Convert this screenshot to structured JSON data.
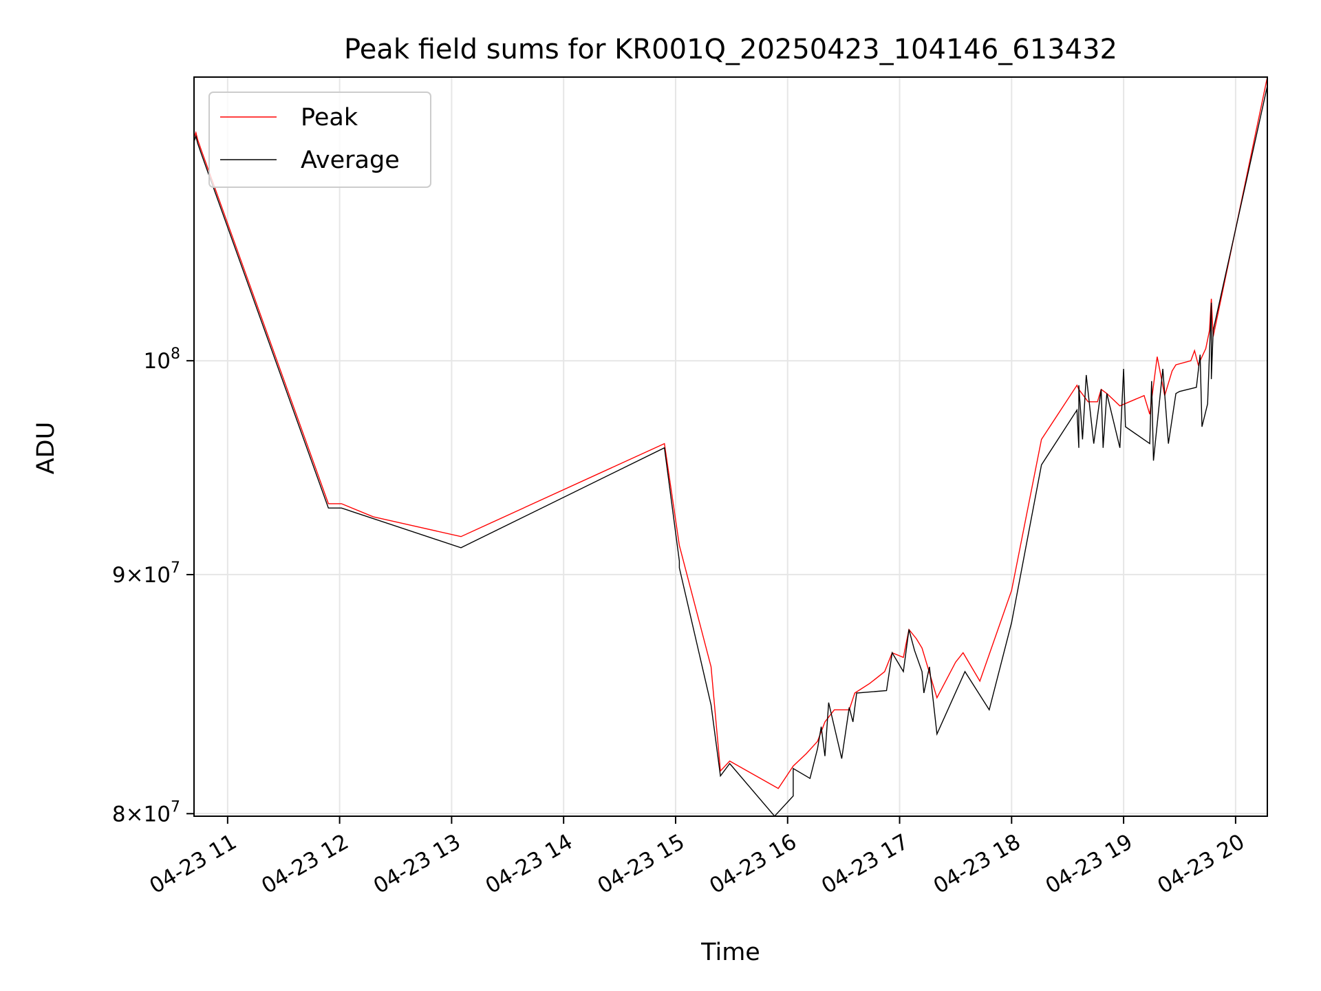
{
  "chart_data": {
    "type": "line",
    "title": "Peak field sums for KR001Q_20250423_104146_613432",
    "xlabel": "Time",
    "ylabel": "ADU",
    "yscale": "log",
    "grid": true,
    "legend_placement": "top-left",
    "xlim": [
      "2025-04-23 10:42",
      "2025-04-23 20:17"
    ],
    "ylim": [
      79900000,
      115000000
    ],
    "x_ticks": [
      "04-23 11",
      "04-23 12",
      "04-23 13",
      "04-23 14",
      "04-23 15",
      "04-23 16",
      "04-23 17",
      "04-23 18",
      "04-23 19",
      "04-23 20"
    ],
    "y_ticks": [
      {
        "value": 80000000,
        "mantissa": "8",
        "base": "10",
        "exponent": "7"
      },
      {
        "value": 90000000,
        "mantissa": "9",
        "base": "10",
        "exponent": "7"
      },
      {
        "value": 100000000,
        "mantissa": "",
        "base": "10",
        "exponent": "8"
      }
    ],
    "series": [
      {
        "name": "Peak",
        "color": "#ff0000",
        "points": [
          [
            "2025-04-23 10:42",
            111600000
          ],
          [
            "2025-04-23 10:43",
            111900000
          ],
          [
            "2025-04-23 10:44",
            111500000
          ],
          [
            "2025-04-23 10:46",
            110900000
          ],
          [
            "2025-04-23 11:54",
            93200000
          ],
          [
            "2025-04-23 12:01",
            93200000
          ],
          [
            "2025-04-23 12:18",
            92600000
          ],
          [
            "2025-04-23 13:05",
            91700000
          ],
          [
            "2025-04-23 14:54",
            96000000
          ],
          [
            "2025-04-23 15:02",
            91300000
          ],
          [
            "2025-04-23 15:19",
            86000000
          ],
          [
            "2025-04-23 15:24",
            81700000
          ],
          [
            "2025-04-23 15:29",
            82100000
          ],
          [
            "2025-04-23 15:55",
            81000000
          ],
          [
            "2025-04-23 16:03",
            81900000
          ],
          [
            "2025-04-23 16:10",
            82400000
          ],
          [
            "2025-04-23 16:16",
            82900000
          ],
          [
            "2025-04-23 16:20",
            83700000
          ],
          [
            "2025-04-23 16:25",
            84200000
          ],
          [
            "2025-04-23 16:33",
            84200000
          ],
          [
            "2025-04-23 16:36",
            84900000
          ],
          [
            "2025-04-23 16:44",
            85300000
          ],
          [
            "2025-04-23 16:52",
            85800000
          ],
          [
            "2025-04-23 16:56",
            86600000
          ],
          [
            "2025-04-23 17:02",
            86400000
          ],
          [
            "2025-04-23 17:05",
            87600000
          ],
          [
            "2025-04-23 17:09",
            87200000
          ],
          [
            "2025-04-23 17:12",
            86800000
          ],
          [
            "2025-04-23 17:20",
            84700000
          ],
          [
            "2025-04-23 17:30",
            86200000
          ],
          [
            "2025-04-23 17:34",
            86600000
          ],
          [
            "2025-04-23 17:43",
            85400000
          ],
          [
            "2025-04-23 18:00",
            89300000
          ],
          [
            "2025-04-23 18:16",
            96200000
          ],
          [
            "2025-04-23 18:35",
            98800000
          ],
          [
            "2025-04-23 18:36",
            98600000
          ],
          [
            "2025-04-23 18:41",
            98000000
          ],
          [
            "2025-04-23 18:46",
            98000000
          ],
          [
            "2025-04-23 18:48",
            98600000
          ],
          [
            "2025-04-23 18:51",
            98400000
          ],
          [
            "2025-04-23 18:58",
            97800000
          ],
          [
            "2025-04-23 19:11",
            98300000
          ],
          [
            "2025-04-23 19:14",
            97400000
          ],
          [
            "2025-04-23 19:18",
            100200000
          ],
          [
            "2025-04-23 19:22",
            98300000
          ],
          [
            "2025-04-23 19:26",
            99500000
          ],
          [
            "2025-04-23 19:28",
            99800000
          ],
          [
            "2025-04-23 19:36",
            100000000
          ],
          [
            "2025-04-23 19:38",
            100500000
          ],
          [
            "2025-04-23 19:40",
            99800000
          ],
          [
            "2025-04-23 19:44",
            100600000
          ],
          [
            "2025-04-23 19:46",
            101500000
          ],
          [
            "2025-04-23 19:47",
            103100000
          ],
          [
            "2025-04-23 19:48",
            101200000
          ],
          [
            "2025-04-23 20:17",
            115000000
          ]
        ]
      },
      {
        "name": "Average",
        "color": "#000000",
        "points": [
          [
            "2025-04-23 10:42",
            111400000
          ],
          [
            "2025-04-23 10:43",
            111700000
          ],
          [
            "2025-04-23 10:44",
            111300000
          ],
          [
            "2025-04-23 10:46",
            110700000
          ],
          [
            "2025-04-23 11:54",
            93000000
          ],
          [
            "2025-04-23 12:01",
            93000000
          ],
          [
            "2025-04-23 13:05",
            91200000
          ],
          [
            "2025-04-23 14:54",
            95800000
          ],
          [
            "2025-04-23 15:02",
            90600000
          ],
          [
            "2025-04-23 15:02",
            90300000
          ],
          [
            "2025-04-23 15:19",
            84400000
          ],
          [
            "2025-04-23 15:24",
            81500000
          ],
          [
            "2025-04-23 15:29",
            82000000
          ],
          [
            "2025-04-23 15:53",
            79900000
          ],
          [
            "2025-04-23 16:03",
            80700000
          ],
          [
            "2025-04-23 16:03",
            81800000
          ],
          [
            "2025-04-23 16:12",
            81400000
          ],
          [
            "2025-04-23 16:16",
            82600000
          ],
          [
            "2025-04-23 16:18",
            83500000
          ],
          [
            "2025-04-23 16:20",
            82300000
          ],
          [
            "2025-04-23 16:22",
            84500000
          ],
          [
            "2025-04-23 16:25",
            83500000
          ],
          [
            "2025-04-23 16:29",
            82200000
          ],
          [
            "2025-04-23 16:33",
            84300000
          ],
          [
            "2025-04-23 16:35",
            83700000
          ],
          [
            "2025-04-23 16:37",
            84900000
          ],
          [
            "2025-04-23 16:53",
            85000000
          ],
          [
            "2025-04-23 16:56",
            86600000
          ],
          [
            "2025-04-23 17:02",
            85800000
          ],
          [
            "2025-04-23 17:05",
            87600000
          ],
          [
            "2025-04-23 17:08",
            86700000
          ],
          [
            "2025-04-23 17:12",
            85800000
          ],
          [
            "2025-04-23 17:13",
            84900000
          ],
          [
            "2025-04-23 17:16",
            86000000
          ],
          [
            "2025-04-23 17:20",
            83200000
          ],
          [
            "2025-04-23 17:35",
            85800000
          ],
          [
            "2025-04-23 17:48",
            84200000
          ],
          [
            "2025-04-23 18:00",
            87900000
          ],
          [
            "2025-04-23 18:16",
            95000000
          ],
          [
            "2025-04-23 18:35",
            97600000
          ],
          [
            "2025-04-23 18:36",
            95800000
          ],
          [
            "2025-04-23 18:36",
            98800000
          ],
          [
            "2025-04-23 18:38",
            96200000
          ],
          [
            "2025-04-23 18:40",
            99300000
          ],
          [
            "2025-04-23 18:44",
            96000000
          ],
          [
            "2025-04-23 18:48",
            98600000
          ],
          [
            "2025-04-23 18:49",
            95800000
          ],
          [
            "2025-04-23 18:51",
            98400000
          ],
          [
            "2025-04-23 18:58",
            95800000
          ],
          [
            "2025-04-23 19:00",
            99600000
          ],
          [
            "2025-04-23 19:01",
            96800000
          ],
          [
            "2025-04-23 19:14",
            96000000
          ],
          [
            "2025-04-23 19:15",
            99000000
          ],
          [
            "2025-04-23 19:16",
            95200000
          ],
          [
            "2025-04-23 19:21",
            99600000
          ],
          [
            "2025-04-23 19:24",
            96000000
          ],
          [
            "2025-04-23 19:28",
            98400000
          ],
          [
            "2025-04-23 19:30",
            98500000
          ],
          [
            "2025-04-23 19:39",
            98700000
          ],
          [
            "2025-04-23 19:41",
            100300000
          ],
          [
            "2025-04-23 19:42",
            96800000
          ],
          [
            "2025-04-23 19:45",
            97900000
          ],
          [
            "2025-04-23 19:47",
            102900000
          ],
          [
            "2025-04-23 19:47",
            99100000
          ],
          [
            "2025-04-23 19:48",
            101500000
          ],
          [
            "2025-04-23 20:17",
            114500000
          ]
        ]
      }
    ]
  }
}
